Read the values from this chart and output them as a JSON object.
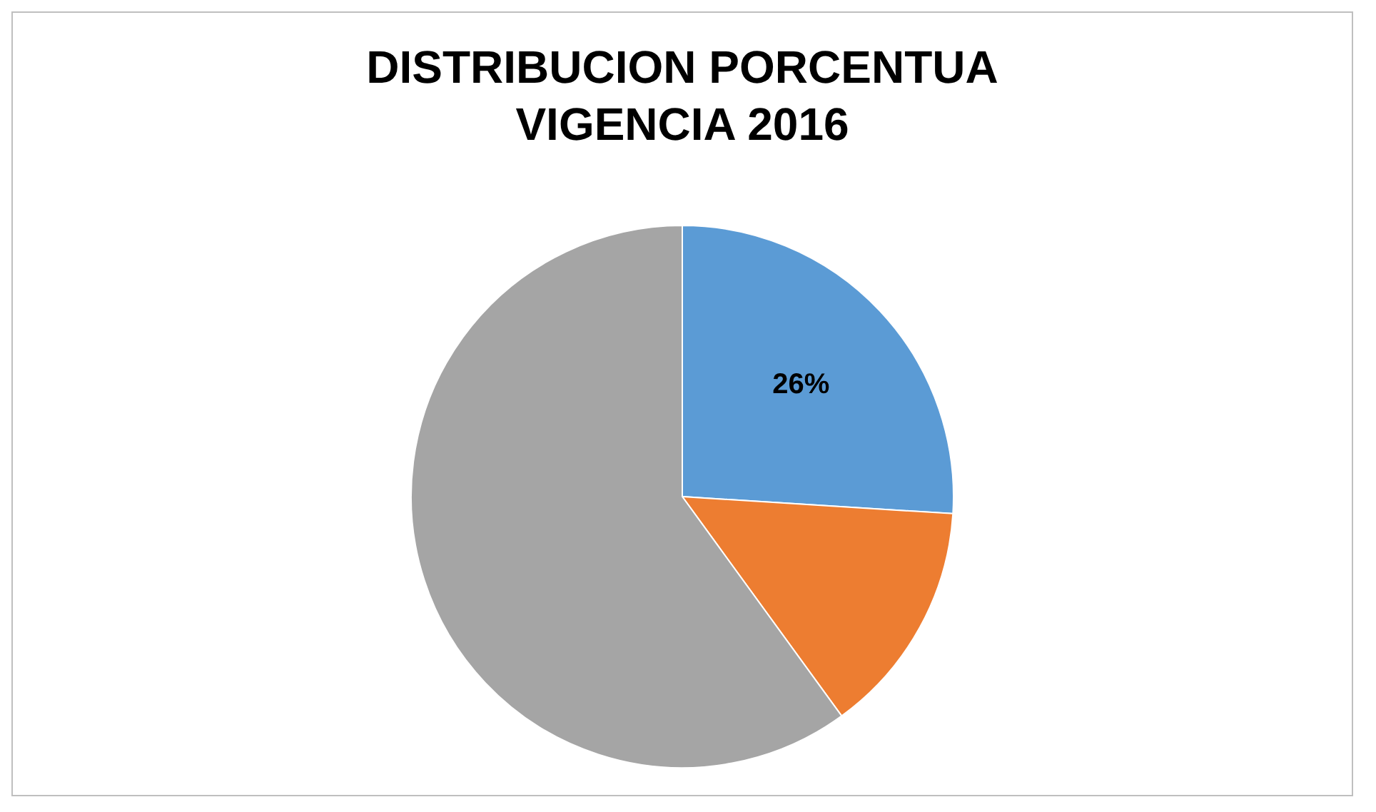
{
  "chart_data": {
    "type": "pie",
    "title": "DISTRIBUCION PORCENTUA\nVIGENCIA 2016",
    "categories": [
      null,
      null,
      null
    ],
    "values": [
      26,
      14,
      60
    ],
    "colors": [
      "#5b9bd5",
      "#ed7d31",
      "#a5a5a5"
    ],
    "value_labels": [
      "26%",
      null,
      null
    ]
  }
}
